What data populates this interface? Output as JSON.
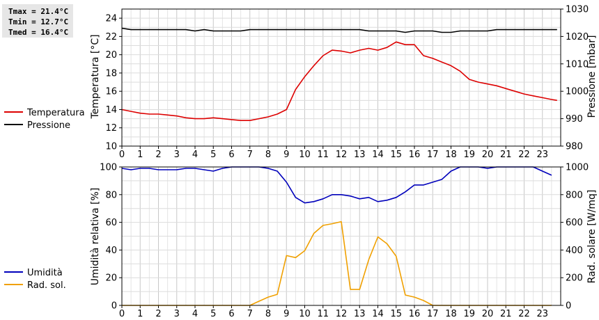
{
  "stats": {
    "tmax": "Tmax = 21.4°C",
    "tmin": "Tmin = 12.7°C",
    "tmed": "Tmed = 16.4°C"
  },
  "chart_data": [
    {
      "type": "line",
      "xlabel": "",
      "ylabel": "Temperatura [°C]",
      "ylabel_right": "Pressione [mbar]",
      "xlim": [
        0,
        24
      ],
      "ylim": [
        10,
        25
      ],
      "ylim_right": [
        980,
        1030
      ],
      "x_ticks": [
        0,
        1,
        2,
        3,
        4,
        5,
        6,
        7,
        8,
        9,
        10,
        11,
        12,
        13,
        14,
        15,
        16,
        17,
        18,
        19,
        20,
        21,
        22,
        23
      ],
      "y_ticks": [
        10,
        12,
        14,
        16,
        18,
        20,
        22,
        24
      ],
      "y_ticks_right": [
        980,
        990,
        1000,
        1010,
        1020,
        1030
      ],
      "grid": true,
      "series": [
        {
          "name": "Temperatura",
          "axis": "left",
          "color": "#dd0000",
          "points": [
            [
              0,
              14.0
            ],
            [
              0.5,
              13.8
            ],
            [
              1,
              13.6
            ],
            [
              1.5,
              13.5
            ],
            [
              2,
              13.5
            ],
            [
              2.5,
              13.4
            ],
            [
              3,
              13.3
            ],
            [
              3.5,
              13.1
            ],
            [
              4,
              13.0
            ],
            [
              4.5,
              13.0
            ],
            [
              5,
              13.1
            ],
            [
              5.5,
              13.0
            ],
            [
              6,
              12.9
            ],
            [
              6.5,
              12.8
            ],
            [
              7,
              12.8
            ],
            [
              7.5,
              13.0
            ],
            [
              8,
              13.2
            ],
            [
              8.5,
              13.5
            ],
            [
              9,
              14.0
            ],
            [
              9.5,
              16.2
            ],
            [
              10,
              17.6
            ],
            [
              10.5,
              18.8
            ],
            [
              11,
              19.9
            ],
            [
              11.5,
              20.5
            ],
            [
              12,
              20.4
            ],
            [
              12.5,
              20.2
            ],
            [
              13,
              20.5
            ],
            [
              13.5,
              20.7
            ],
            [
              14,
              20.5
            ],
            [
              14.5,
              20.8
            ],
            [
              15,
              21.4
            ],
            [
              15.5,
              21.1
            ],
            [
              16,
              21.1
            ],
            [
              16.5,
              19.9
            ],
            [
              17,
              19.6
            ],
            [
              17.5,
              19.2
            ],
            [
              18,
              18.8
            ],
            [
              18.5,
              18.2
            ],
            [
              19,
              17.3
            ],
            [
              19.5,
              17.0
            ],
            [
              20,
              16.8
            ],
            [
              20.5,
              16.6
            ],
            [
              21,
              16.3
            ],
            [
              21.5,
              16.0
            ],
            [
              22,
              15.7
            ],
            [
              22.5,
              15.5
            ],
            [
              23,
              15.3
            ],
            [
              23.5,
              15.1
            ],
            [
              23.8,
              15.0
            ]
          ]
        },
        {
          "name": "Pressione",
          "axis": "right",
          "color": "#000000",
          "points": [
            [
              0,
              1023
            ],
            [
              0.5,
              1022.5
            ],
            [
              1,
              1022.5
            ],
            [
              1.5,
              1022.5
            ],
            [
              2,
              1022.5
            ],
            [
              2.5,
              1022.5
            ],
            [
              3,
              1022.5
            ],
            [
              3.5,
              1022.5
            ],
            [
              4,
              1022.0
            ],
            [
              4.5,
              1022.5
            ],
            [
              5,
              1022.0
            ],
            [
              5.5,
              1022.0
            ],
            [
              6,
              1022.0
            ],
            [
              6.5,
              1022.0
            ],
            [
              7,
              1022.5
            ],
            [
              7.5,
              1022.5
            ],
            [
              8,
              1022.5
            ],
            [
              8.5,
              1022.5
            ],
            [
              9,
              1022.5
            ],
            [
              9.5,
              1022.5
            ],
            [
              10,
              1022.5
            ],
            [
              10.5,
              1022.5
            ],
            [
              11,
              1022.5
            ],
            [
              11.5,
              1022.5
            ],
            [
              12,
              1022.5
            ],
            [
              12.5,
              1022.5
            ],
            [
              13,
              1022.5
            ],
            [
              13.5,
              1022.0
            ],
            [
              14,
              1022.0
            ],
            [
              14.5,
              1022.0
            ],
            [
              15,
              1022.0
            ],
            [
              15.5,
              1021.5
            ],
            [
              16,
              1022.0
            ],
            [
              16.5,
              1022.0
            ],
            [
              17,
              1022.0
            ],
            [
              17.5,
              1021.5
            ],
            [
              18,
              1021.5
            ],
            [
              18.5,
              1022.0
            ],
            [
              19,
              1022.0
            ],
            [
              19.5,
              1022.0
            ],
            [
              20,
              1022.0
            ],
            [
              20.5,
              1022.5
            ],
            [
              21,
              1022.5
            ],
            [
              21.5,
              1022.5
            ],
            [
              22,
              1022.5
            ],
            [
              22.5,
              1022.5
            ],
            [
              23,
              1022.5
            ],
            [
              23.5,
              1022.5
            ],
            [
              23.8,
              1022.5
            ]
          ]
        }
      ]
    },
    {
      "type": "line",
      "xlabel": "",
      "ylabel": "Umidità relativa [%]",
      "ylabel_right": "Rad. solare [W/mq]",
      "xlim": [
        0,
        24
      ],
      "ylim": [
        0,
        100
      ],
      "ylim_right": [
        0,
        1000
      ],
      "x_ticks": [
        0,
        1,
        2,
        3,
        4,
        5,
        6,
        7,
        8,
        9,
        10,
        11,
        12,
        13,
        14,
        15,
        16,
        17,
        18,
        19,
        20,
        21,
        22,
        23
      ],
      "y_ticks": [
        0,
        20,
        40,
        60,
        80,
        100
      ],
      "y_ticks_right": [
        0,
        200,
        400,
        600,
        800,
        1000
      ],
      "grid": true,
      "series": [
        {
          "name": "Umidità",
          "axis": "left",
          "color": "#0000bb",
          "points": [
            [
              0,
              99
            ],
            [
              0.5,
              98
            ],
            [
              1,
              99
            ],
            [
              1.5,
              99
            ],
            [
              2,
              98
            ],
            [
              2.5,
              98
            ],
            [
              3,
              98
            ],
            [
              3.5,
              99
            ],
            [
              4,
              99
            ],
            [
              4.5,
              98
            ],
            [
              5,
              97
            ],
            [
              5.5,
              99
            ],
            [
              6,
              100
            ],
            [
              6.5,
              100
            ],
            [
              7,
              100
            ],
            [
              7.5,
              100
            ],
            [
              8,
              99
            ],
            [
              8.5,
              97
            ],
            [
              9,
              89
            ],
            [
              9.5,
              78
            ],
            [
              10,
              74
            ],
            [
              10.5,
              75
            ],
            [
              11,
              77
            ],
            [
              11.5,
              80
            ],
            [
              12,
              80
            ],
            [
              12.5,
              79
            ],
            [
              13,
              77
            ],
            [
              13.5,
              78
            ],
            [
              14,
              75
            ],
            [
              14.5,
              76
            ],
            [
              15,
              78
            ],
            [
              15.5,
              82
            ],
            [
              16,
              87
            ],
            [
              16.5,
              87
            ],
            [
              17,
              89
            ],
            [
              17.5,
              91
            ],
            [
              18,
              97
            ],
            [
              18.5,
              100
            ],
            [
              19,
              100
            ],
            [
              19.5,
              100
            ],
            [
              20,
              99
            ],
            [
              20.5,
              100
            ],
            [
              21,
              100
            ],
            [
              21.5,
              100
            ],
            [
              22,
              100
            ],
            [
              22.5,
              100
            ],
            [
              23,
              97
            ],
            [
              23.5,
              94
            ]
          ]
        },
        {
          "name": "Rad. sol.",
          "axis": "right",
          "color": "#f0a000",
          "points": [
            [
              0,
              0
            ],
            [
              0.5,
              0
            ],
            [
              1,
              0
            ],
            [
              1.5,
              0
            ],
            [
              2,
              0
            ],
            [
              2.5,
              0
            ],
            [
              3,
              0
            ],
            [
              3.5,
              0
            ],
            [
              4,
              0
            ],
            [
              4.5,
              0
            ],
            [
              5,
              0
            ],
            [
              5.5,
              0
            ],
            [
              6,
              0
            ],
            [
              6.5,
              0
            ],
            [
              7,
              0
            ],
            [
              7.5,
              30
            ],
            [
              8,
              60
            ],
            [
              8.5,
              80
            ],
            [
              9,
              360
            ],
            [
              9.5,
              345
            ],
            [
              10,
              395
            ],
            [
              10.5,
              520
            ],
            [
              11,
              578
            ],
            [
              11.5,
              590
            ],
            [
              12,
              605
            ],
            [
              12.5,
              115
            ],
            [
              13,
              115
            ],
            [
              13.5,
              330
            ],
            [
              14,
              495
            ],
            [
              14.5,
              445
            ],
            [
              15,
              355
            ],
            [
              15.5,
              75
            ],
            [
              16,
              60
            ],
            [
              16.5,
              35
            ],
            [
              17,
              0
            ],
            [
              17.5,
              0
            ],
            [
              18,
              0
            ],
            [
              18.5,
              0
            ],
            [
              19,
              0
            ],
            [
              19.5,
              0
            ],
            [
              20,
              0
            ],
            [
              20.5,
              0
            ],
            [
              21,
              0
            ],
            [
              21.5,
              0
            ],
            [
              22,
              0
            ],
            [
              22.5,
              0
            ],
            [
              23,
              0
            ],
            [
              23.5,
              0
            ]
          ]
        }
      ]
    }
  ]
}
